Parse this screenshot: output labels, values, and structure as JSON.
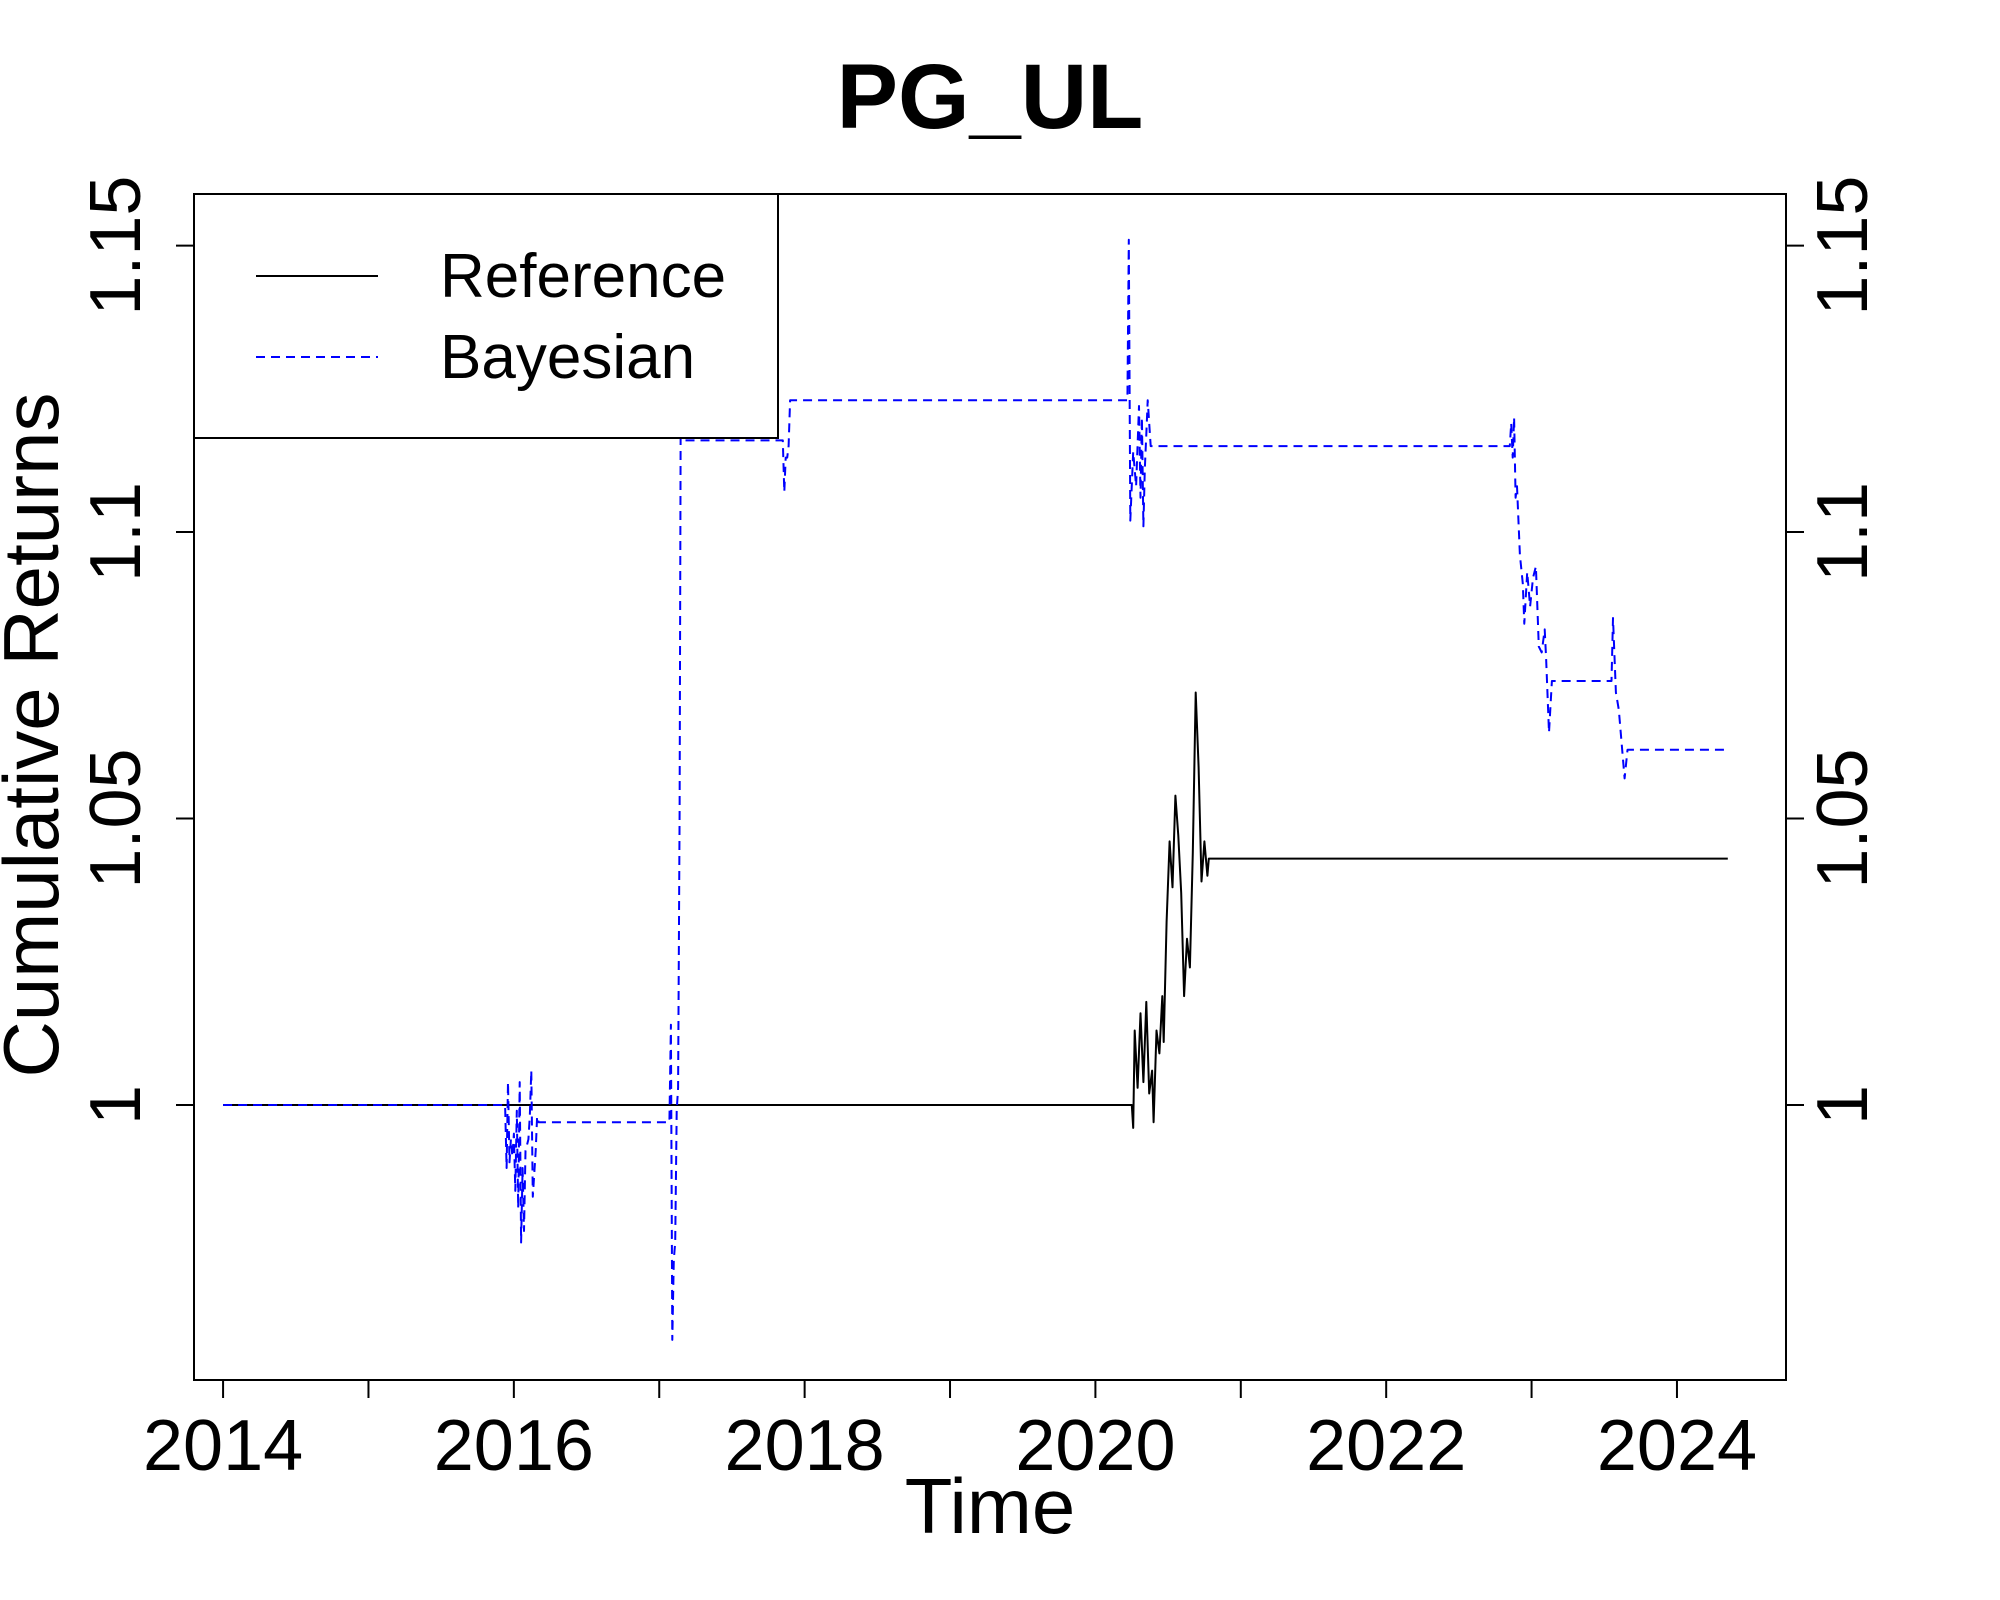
{
  "chart_data": {
    "type": "line",
    "title": "PG_UL",
    "xlabel": "Time",
    "ylabel": "Cumulative Returns",
    "xlim": [
      2013.8,
      2024.75
    ],
    "ylim": [
      0.952,
      1.159
    ],
    "x_ticks": [
      2014,
      2015,
      2016,
      2017,
      2018,
      2019,
      2020,
      2021,
      2022,
      2023,
      2024
    ],
    "x_tick_labels": [
      "2014",
      "",
      "2016",
      "",
      "2018",
      "",
      "2020",
      "",
      "2022",
      "",
      "2024"
    ],
    "y_ticks": [
      1.0,
      1.05,
      1.1,
      1.15
    ],
    "y_tick_labels": [
      "1",
      "1.05",
      "1.1",
      "1.15"
    ],
    "right_axis": true,
    "grid": false,
    "legend_position": "top-left",
    "series": [
      {
        "name": "Reference",
        "color": "#000000",
        "dash": "solid",
        "points": [
          [
            2014.0,
            1.0
          ],
          [
            2020.25,
            1.0
          ],
          [
            2020.26,
            0.996
          ],
          [
            2020.27,
            1.013
          ],
          [
            2020.29,
            1.003
          ],
          [
            2020.31,
            1.016
          ],
          [
            2020.33,
            1.004
          ],
          [
            2020.35,
            1.018
          ],
          [
            2020.37,
            1.002
          ],
          [
            2020.39,
            1.006
          ],
          [
            2020.4,
            0.997
          ],
          [
            2020.42,
            1.013
          ],
          [
            2020.44,
            1.009
          ],
          [
            2020.46,
            1.019
          ],
          [
            2020.47,
            1.011
          ],
          [
            2020.49,
            1.032
          ],
          [
            2020.51,
            1.046
          ],
          [
            2020.53,
            1.038
          ],
          [
            2020.55,
            1.054
          ],
          [
            2020.57,
            1.047
          ],
          [
            2020.59,
            1.037
          ],
          [
            2020.61,
            1.019
          ],
          [
            2020.63,
            1.029
          ],
          [
            2020.65,
            1.024
          ],
          [
            2020.67,
            1.044
          ],
          [
            2020.69,
            1.072
          ],
          [
            2020.71,
            1.059
          ],
          [
            2020.73,
            1.039
          ],
          [
            2020.75,
            1.046
          ],
          [
            2020.77,
            1.04
          ],
          [
            2020.78,
            1.043
          ],
          [
            2020.8,
            1.043
          ],
          [
            2024.35,
            1.043
          ]
        ]
      },
      {
        "name": "Bayesian",
        "color": "#0000ff",
        "dash": "dashed",
        "points": [
          [
            2014.0,
            1.0
          ],
          [
            2015.94,
            1.0
          ],
          [
            2015.95,
            0.989
          ],
          [
            2015.96,
            1.004
          ],
          [
            2015.97,
            0.99
          ],
          [
            2015.98,
            0.994
          ],
          [
            2015.99,
            0.991
          ],
          [
            2016.0,
            0.995
          ],
          [
            2016.01,
            0.985
          ],
          [
            2016.02,
            0.999
          ],
          [
            2016.03,
            0.982
          ],
          [
            2016.04,
            1.004
          ],
          [
            2016.05,
            0.976
          ],
          [
            2016.06,
            0.989
          ],
          [
            2016.07,
            0.978
          ],
          [
            2016.08,
            0.992
          ],
          [
            2016.1,
            0.994
          ],
          [
            2016.11,
            0.998
          ],
          [
            2016.12,
            1.006
          ],
          [
            2016.13,
            0.984
          ],
          [
            2016.15,
            0.992
          ],
          [
            2016.16,
            0.998
          ],
          [
            2016.17,
            0.997
          ],
          [
            2017.07,
            0.997
          ],
          [
            2017.08,
            1.014
          ],
          [
            2017.09,
            0.959
          ],
          [
            2017.1,
            0.973
          ],
          [
            2017.11,
            0.976
          ],
          [
            2017.12,
            0.999
          ],
          [
            2017.13,
            1.003
          ],
          [
            2017.14,
            1.051
          ],
          [
            2017.15,
            1.147
          ],
          [
            2017.16,
            1.125
          ],
          [
            2017.17,
            1.12
          ],
          [
            2017.18,
            1.116
          ],
          [
            2017.85,
            1.116
          ],
          [
            2017.86,
            1.107
          ],
          [
            2017.87,
            1.113
          ],
          [
            2017.88,
            1.113
          ],
          [
            2017.89,
            1.115
          ],
          [
            2017.9,
            1.123
          ],
          [
            2020.22,
            1.123
          ],
          [
            2020.23,
            1.151
          ],
          [
            2020.24,
            1.102
          ],
          [
            2020.26,
            1.114
          ],
          [
            2020.28,
            1.108
          ],
          [
            2020.3,
            1.122
          ],
          [
            2020.31,
            1.106
          ],
          [
            2020.32,
            1.12
          ],
          [
            2020.33,
            1.101
          ],
          [
            2020.34,
            1.111
          ],
          [
            2020.35,
            1.117
          ],
          [
            2020.36,
            1.123
          ],
          [
            2020.37,
            1.119
          ],
          [
            2020.38,
            1.115
          ],
          [
            2022.85,
            1.115
          ],
          [
            2022.86,
            1.119
          ],
          [
            2022.87,
            1.113
          ],
          [
            2022.88,
            1.12
          ],
          [
            2022.89,
            1.106
          ],
          [
            2022.9,
            1.108
          ],
          [
            2022.92,
            1.096
          ],
          [
            2022.94,
            1.091
          ],
          [
            2022.95,
            1.084
          ],
          [
            2022.97,
            1.093
          ],
          [
            2022.99,
            1.087
          ],
          [
            2023.01,
            1.092
          ],
          [
            2023.03,
            1.094
          ],
          [
            2023.05,
            1.08
          ],
          [
            2023.07,
            1.079
          ],
          [
            2023.09,
            1.083
          ],
          [
            2023.1,
            1.078
          ],
          [
            2023.12,
            1.065
          ],
          [
            2023.14,
            1.074
          ],
          [
            2023.16,
            1.074
          ],
          [
            2023.55,
            1.074
          ],
          [
            2023.56,
            1.085
          ],
          [
            2023.58,
            1.072
          ],
          [
            2023.6,
            1.069
          ],
          [
            2023.62,
            1.063
          ],
          [
            2023.64,
            1.057
          ],
          [
            2023.66,
            1.062
          ],
          [
            2023.68,
            1.062
          ],
          [
            2024.35,
            1.062
          ]
        ]
      }
    ]
  }
}
